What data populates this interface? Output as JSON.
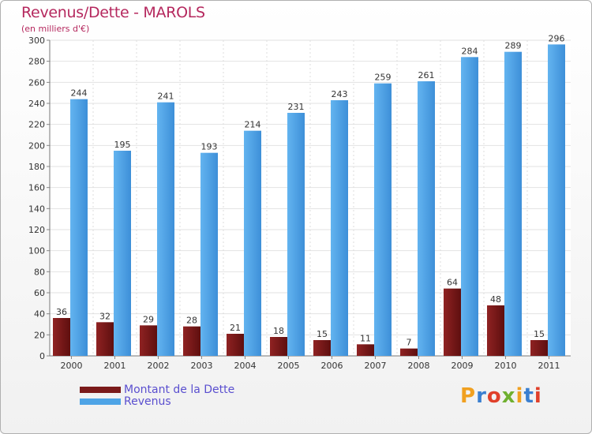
{
  "title": "Revenus/Dette - MAROLS",
  "subtitle": "(en milliers d'€)",
  "legend": {
    "debt_label": "Montant de la Dette",
    "revenue_label": "Revenus"
  },
  "logo": {
    "text": "Proxiti",
    "letter_colors": [
      "#f0a020",
      "#3a7fd0",
      "#e0402a",
      "#70b030",
      "#f0a020",
      "#3a7fd0",
      "#e0402a"
    ]
  },
  "colors": {
    "debt": "#7a1a1a",
    "revenue": "#4ea4e6",
    "title": "#b5285e",
    "legend_text": "#5a4fcf"
  },
  "chart_data": {
    "type": "bar",
    "title": "Revenus/Dette - MAROLS",
    "ylabel": "(en milliers d'€)",
    "xlabel": "",
    "categories": [
      "2000",
      "2001",
      "2002",
      "2003",
      "2004",
      "2005",
      "2006",
      "2007",
      "2008",
      "2009",
      "2010",
      "2011"
    ],
    "series": [
      {
        "name": "Montant de la Dette",
        "values": [
          36,
          32,
          29,
          28,
          21,
          18,
          15,
          11,
          7,
          64,
          48,
          15
        ]
      },
      {
        "name": "Revenus",
        "values": [
          244,
          195,
          241,
          193,
          214,
          231,
          243,
          259,
          261,
          284,
          289,
          296
        ]
      }
    ],
    "ylim": [
      0,
      300
    ],
    "yticks": [
      0,
      20,
      40,
      60,
      80,
      100,
      120,
      140,
      160,
      180,
      200,
      220,
      240,
      260,
      280,
      300
    ],
    "grid": true,
    "legend_position": "bottom-left"
  }
}
